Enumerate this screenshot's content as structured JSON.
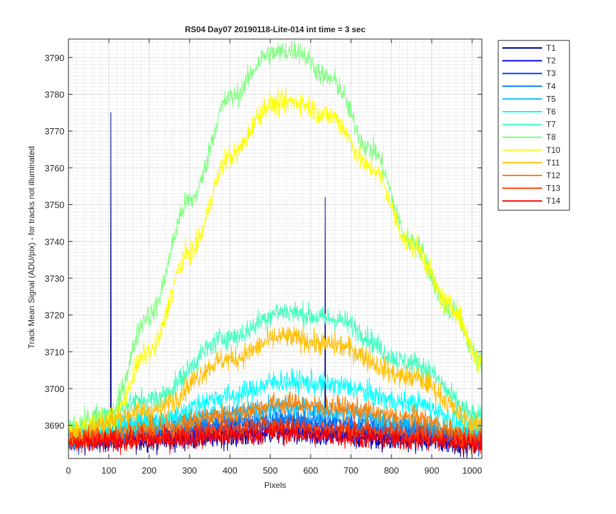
{
  "chart_data": {
    "type": "line",
    "title": "RS04 Day07 20190118-Lite-014 int time = 3 sec",
    "xlabel": "Pixels",
    "ylabel": "Track Mean Signal (ADU/pix) - for tracks not illuminated",
    "xlim": [
      0,
      1024
    ],
    "ylim": [
      3681,
      3795
    ],
    "xticks": [
      0,
      100,
      200,
      300,
      400,
      500,
      600,
      700,
      800,
      900,
      1000
    ],
    "yticks": [
      3690,
      3700,
      3710,
      3720,
      3730,
      3740,
      3750,
      3760,
      3770,
      3780,
      3790
    ],
    "grid": true,
    "minor_grid": true,
    "legend_position": "outside-top-right",
    "series": [
      {
        "name": "T1",
        "color": "#00008f",
        "points": [
          [
            0,
            3686
          ],
          [
            200,
            3686
          ],
          [
            400,
            3687
          ],
          [
            520,
            3688
          ],
          [
            650,
            3687
          ],
          [
            850,
            3686
          ],
          [
            1024,
            3685
          ]
        ],
        "noise": 1.6,
        "spikes": [
          [
            105,
            3775
          ],
          [
            636,
            3752
          ]
        ]
      },
      {
        "name": "T2",
        "color": "#0000dd",
        "points": [
          [
            0,
            3686
          ],
          [
            200,
            3687
          ],
          [
            400,
            3688
          ],
          [
            520,
            3689
          ],
          [
            650,
            3688
          ],
          [
            850,
            3687
          ],
          [
            1024,
            3686
          ]
        ],
        "noise": 1.5
      },
      {
        "name": "T3",
        "color": "#0040ff",
        "points": [
          [
            0,
            3686
          ],
          [
            200,
            3688
          ],
          [
            400,
            3690
          ],
          [
            530,
            3691
          ],
          [
            650,
            3690
          ],
          [
            850,
            3688
          ],
          [
            1024,
            3686
          ]
        ],
        "noise": 1.5
      },
      {
        "name": "T4",
        "color": "#0080ff",
        "points": [
          [
            0,
            3687
          ],
          [
            200,
            3689
          ],
          [
            400,
            3691
          ],
          [
            530,
            3692
          ],
          [
            650,
            3691
          ],
          [
            850,
            3689
          ],
          [
            1024,
            3687
          ]
        ],
        "noise": 1.5
      },
      {
        "name": "T5",
        "color": "#00c0ff",
        "points": [
          [
            0,
            3687
          ],
          [
            200,
            3691
          ],
          [
            400,
            3693
          ],
          [
            530,
            3695
          ],
          [
            650,
            3694
          ],
          [
            850,
            3690
          ],
          [
            1024,
            3687
          ]
        ],
        "noise": 1.5
      },
      {
        "name": "T6",
        "color": "#00ffff",
        "points": [
          [
            0,
            3688
          ],
          [
            200,
            3691
          ],
          [
            400,
            3698
          ],
          [
            530,
            3702
          ],
          [
            650,
            3701
          ],
          [
            850,
            3696
          ],
          [
            1024,
            3689
          ]
        ],
        "noise": 1.6
      },
      {
        "name": "T7",
        "color": "#40ffbf",
        "points": [
          [
            0,
            3689
          ],
          [
            200,
            3697
          ],
          [
            400,
            3714
          ],
          [
            530,
            3721
          ],
          [
            650,
            3719
          ],
          [
            850,
            3707
          ],
          [
            1024,
            3692
          ]
        ],
        "noise": 1.6
      },
      {
        "name": "T8",
        "color": "#80ff80",
        "points": [
          [
            0,
            3690
          ],
          [
            100,
            3693
          ],
          [
            200,
            3720
          ],
          [
            300,
            3751
          ],
          [
            400,
            3779
          ],
          [
            500,
            3791
          ],
          [
            560,
            3792
          ],
          [
            650,
            3784
          ],
          [
            750,
            3765
          ],
          [
            850,
            3740
          ],
          [
            950,
            3721
          ],
          [
            1024,
            3707
          ]
        ],
        "noise": 1.6
      },
      {
        "name": "T10",
        "color": "#ffff00",
        "points": [
          [
            0,
            3689
          ],
          [
            100,
            3691
          ],
          [
            200,
            3710
          ],
          [
            300,
            3737
          ],
          [
            400,
            3763
          ],
          [
            500,
            3777
          ],
          [
            560,
            3778
          ],
          [
            650,
            3774
          ],
          [
            750,
            3760
          ],
          [
            850,
            3739
          ],
          [
            950,
            3722
          ],
          [
            1024,
            3707
          ]
        ],
        "noise": 1.6
      },
      {
        "name": "T11",
        "color": "#ffbf00",
        "points": [
          [
            0,
            3688
          ],
          [
            200,
            3694
          ],
          [
            400,
            3708
          ],
          [
            530,
            3714
          ],
          [
            650,
            3712
          ],
          [
            850,
            3703
          ],
          [
            1024,
            3690
          ]
        ],
        "noise": 1.6
      },
      {
        "name": "T12",
        "color": "#ff8000",
        "points": [
          [
            0,
            3686
          ],
          [
            200,
            3689
          ],
          [
            400,
            3693
          ],
          [
            530,
            3696
          ],
          [
            650,
            3695
          ],
          [
            850,
            3692
          ],
          [
            1024,
            3686
          ]
        ],
        "noise": 1.5
      },
      {
        "name": "T13",
        "color": "#ff4000",
        "points": [
          [
            0,
            3686
          ],
          [
            200,
            3687
          ],
          [
            400,
            3689
          ],
          [
            530,
            3690
          ],
          [
            650,
            3689
          ],
          [
            850,
            3688
          ],
          [
            1024,
            3686
          ]
        ],
        "noise": 1.5
      },
      {
        "name": "T14",
        "color": "#ff0000",
        "points": [
          [
            0,
            3685
          ],
          [
            200,
            3686
          ],
          [
            400,
            3687
          ],
          [
            530,
            3688
          ],
          [
            650,
            3687
          ],
          [
            850,
            3686
          ],
          [
            1024,
            3685
          ]
        ],
        "noise": 1.5
      }
    ]
  }
}
